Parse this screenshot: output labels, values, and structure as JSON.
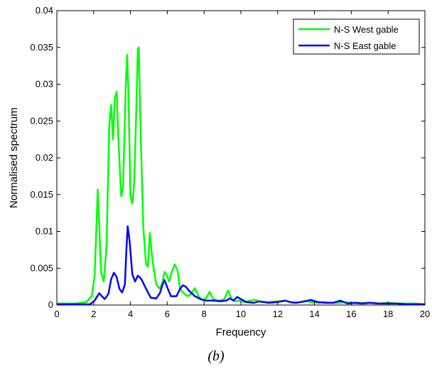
{
  "caption": "(b)",
  "chart_data": {
    "type": "line",
    "title": "",
    "xlabel": "Frequency",
    "ylabel": "Normalised spectrum",
    "xlim": [
      0,
      20
    ],
    "ylim": [
      0,
      0.04
    ],
    "xticks": [
      0,
      2,
      4,
      6,
      8,
      10,
      12,
      14,
      16,
      18,
      20
    ],
    "yticks": [
      0,
      0.005,
      0.01,
      0.015,
      0.02,
      0.025,
      0.03,
      0.035,
      0.04
    ],
    "xtick_labels": [
      "0",
      "2",
      "4",
      "6",
      "8",
      "10",
      "12",
      "14",
      "16",
      "18",
      "20"
    ],
    "ytick_labels": [
      "0",
      "0.005",
      "0.01",
      "0.015",
      "0.02",
      "0.025",
      "0.03",
      "0.035",
      "0.04"
    ],
    "grid": false,
    "legend_position": "top-right",
    "series": [
      {
        "name": "N-S West gable",
        "color": "#00ff00",
        "x": [
          0,
          1.0,
          1.6,
          1.9,
          2.05,
          2.15,
          2.22,
          2.3,
          2.4,
          2.55,
          2.7,
          2.85,
          2.95,
          3.05,
          3.15,
          3.25,
          3.35,
          3.5,
          3.6,
          3.75,
          3.82,
          3.9,
          4.0,
          4.1,
          4.2,
          4.3,
          4.4,
          4.45,
          4.55,
          4.7,
          4.85,
          4.95,
          5.05,
          5.2,
          5.4,
          5.6,
          5.75,
          5.85,
          5.95,
          6.1,
          6.25,
          6.4,
          6.55,
          6.7,
          6.9,
          7.1,
          7.3,
          7.5,
          7.7,
          7.9,
          8.1,
          8.3,
          8.5,
          8.8,
          9.1,
          9.3,
          9.5,
          9.7,
          9.9,
          10.2,
          10.5,
          10.8,
          11.1,
          11.5,
          12.0,
          12.4,
          12.8,
          13.2,
          13.5,
          13.8,
          14.2,
          14.5,
          14.9,
          15.3,
          15.6,
          16.0,
          16.5,
          17.0,
          17.5,
          18.0,
          18.5,
          19.0,
          19.5,
          20.0
        ],
        "y": [
          0.0002,
          0.0002,
          0.0004,
          0.0012,
          0.004,
          0.0105,
          0.0157,
          0.011,
          0.0045,
          0.0032,
          0.008,
          0.0245,
          0.0272,
          0.0225,
          0.0282,
          0.029,
          0.022,
          0.0148,
          0.016,
          0.0303,
          0.034,
          0.028,
          0.0148,
          0.0138,
          0.0165,
          0.025,
          0.0348,
          0.035,
          0.024,
          0.0105,
          0.0055,
          0.0052,
          0.0098,
          0.006,
          0.0028,
          0.0022,
          0.0032,
          0.0045,
          0.0042,
          0.0032,
          0.0045,
          0.0055,
          0.0048,
          0.0022,
          0.0016,
          0.0012,
          0.0015,
          0.0023,
          0.0012,
          0.0007,
          0.0009,
          0.0018,
          0.0008,
          0.0006,
          0.0008,
          0.002,
          0.0008,
          0.0005,
          0.0006,
          0.0004,
          0.0006,
          0.0007,
          0.0004,
          0.0004,
          0.0005,
          0.0006,
          0.0003,
          0.0004,
          0.0006,
          0.0004,
          0.0003,
          0.0004,
          0.0003,
          0.0003,
          0.0004,
          0.0003,
          0.0003,
          0.0003,
          0.0002,
          0.0003,
          0.0002,
          0.0002,
          0.0002,
          0.0001
        ]
      },
      {
        "name": "N-S East gable",
        "color": "#0000ff",
        "x": [
          0,
          1.8,
          2.05,
          2.2,
          2.3,
          2.45,
          2.6,
          2.8,
          2.95,
          3.1,
          3.25,
          3.4,
          3.55,
          3.7,
          3.78,
          3.85,
          3.95,
          4.1,
          4.25,
          4.4,
          4.6,
          4.85,
          5.1,
          5.4,
          5.6,
          5.75,
          5.85,
          6.0,
          6.2,
          6.5,
          6.7,
          6.85,
          7.0,
          7.2,
          7.5,
          7.8,
          8.1,
          8.5,
          8.9,
          9.2,
          9.4,
          9.6,
          9.8,
          10.0,
          10.3,
          10.7,
          11.0,
          11.5,
          12.0,
          12.4,
          12.7,
          13.0,
          13.5,
          13.8,
          14.2,
          14.6,
          15.0,
          15.4,
          15.8,
          16.2,
          16.6,
          17.0,
          17.5,
          18.0,
          18.5,
          19.0,
          19.5,
          20.0
        ],
        "y": [
          0.0001,
          0.0001,
          0.0006,
          0.0012,
          0.0016,
          0.0012,
          0.0008,
          0.0015,
          0.0035,
          0.0044,
          0.0038,
          0.0022,
          0.0017,
          0.0028,
          0.0075,
          0.0107,
          0.0088,
          0.0042,
          0.0032,
          0.004,
          0.0035,
          0.0022,
          0.001,
          0.0009,
          0.0016,
          0.0028,
          0.0034,
          0.0024,
          0.0012,
          0.0012,
          0.0022,
          0.0027,
          0.0025,
          0.0019,
          0.0012,
          0.0008,
          0.0006,
          0.0006,
          0.0005,
          0.0006,
          0.0009,
          0.0006,
          0.0011,
          0.0008,
          0.0004,
          0.0003,
          0.0005,
          0.0003,
          0.0004,
          0.0006,
          0.0004,
          0.0003,
          0.0005,
          0.0007,
          0.0004,
          0.0003,
          0.0003,
          0.0006,
          0.0002,
          0.0003,
          0.0002,
          0.0003,
          0.0002,
          0.0002,
          0.0002,
          0.0001,
          0.0001,
          0.0001
        ]
      }
    ]
  }
}
